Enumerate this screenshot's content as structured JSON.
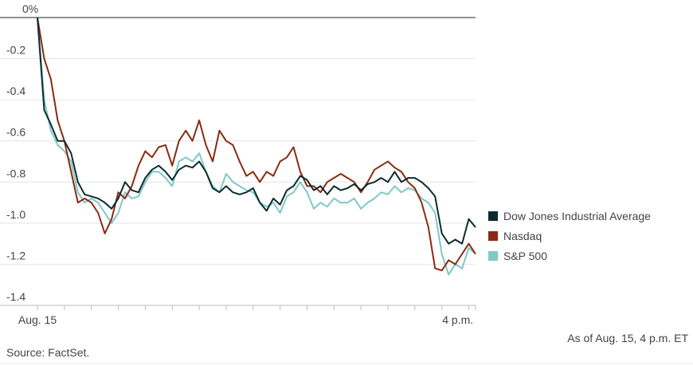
{
  "chart_data": {
    "type": "line",
    "categories": [
      "Aug. 15",
      null,
      null,
      null,
      null,
      null,
      null,
      null,
      null,
      null,
      null,
      null,
      null,
      null,
      null,
      null,
      null,
      null,
      null,
      null,
      null,
      null,
      null,
      null,
      null,
      null,
      null,
      null,
      null,
      null,
      null,
      null,
      null,
      null,
      null,
      null,
      null,
      null,
      null,
      null,
      null,
      null,
      null,
      null,
      null,
      null,
      null,
      null,
      null,
      null,
      null,
      null,
      null,
      null,
      null,
      null,
      null,
      null,
      null,
      null,
      "4 p.m.",
      null,
      null,
      null,
      null,
      null
    ],
    "series": [
      {
        "name": "Dow Jones Industrial Average",
        "color": "#0d2b2e",
        "values": [
          0,
          -0.45,
          -0.52,
          -0.6,
          -0.6,
          -0.66,
          -0.8,
          -0.86,
          -0.87,
          -0.88,
          -0.9,
          -0.93,
          -0.88,
          -0.8,
          -0.84,
          -0.85,
          -0.78,
          -0.74,
          -0.72,
          -0.75,
          -0.79,
          -0.74,
          -0.72,
          -0.73,
          -0.7,
          -0.75,
          -0.83,
          -0.85,
          -0.82,
          -0.85,
          -0.86,
          -0.85,
          -0.83,
          -0.9,
          -0.94,
          -0.88,
          -0.91,
          -0.84,
          -0.82,
          -0.77,
          -0.79,
          -0.84,
          -0.82,
          -0.86,
          -0.82,
          -0.84,
          -0.83,
          -0.81,
          -0.84,
          -0.81,
          -0.8,
          -0.78,
          -0.8,
          -0.75,
          -0.8,
          -0.78,
          -0.78,
          -0.8,
          -0.83,
          -0.87,
          -1.05,
          -1.1,
          -1.08,
          -1.1,
          -0.98,
          -1.02
        ]
      },
      {
        "name": "Nasdaq",
        "color": "#8b2a12",
        "values": [
          0,
          -0.2,
          -0.3,
          -0.5,
          -0.6,
          -0.75,
          -0.9,
          -0.88,
          -0.9,
          -0.95,
          -1.05,
          -0.98,
          -0.85,
          -0.88,
          -0.82,
          -0.72,
          -0.65,
          -0.68,
          -0.63,
          -0.62,
          -0.72,
          -0.6,
          -0.55,
          -0.6,
          -0.5,
          -0.62,
          -0.7,
          -0.55,
          -0.6,
          -0.62,
          -0.7,
          -0.77,
          -0.75,
          -0.8,
          -0.75,
          -0.77,
          -0.7,
          -0.68,
          -0.63,
          -0.75,
          -0.82,
          -0.82,
          -0.85,
          -0.8,
          -0.78,
          -0.76,
          -0.78,
          -0.8,
          -0.85,
          -0.8,
          -0.74,
          -0.72,
          -0.7,
          -0.73,
          -0.75,
          -0.8,
          -0.83,
          -0.9,
          -1.02,
          -1.22,
          -1.23,
          -1.18,
          -1.2,
          -1.15,
          -1.1,
          -1.15
        ]
      },
      {
        "name": "S&P 500",
        "color": "#7ec8c9",
        "values": [
          0,
          -0.4,
          -0.55,
          -0.62,
          -0.65,
          -0.7,
          -0.85,
          -0.9,
          -0.88,
          -0.9,
          -0.95,
          -1.0,
          -0.95,
          -0.85,
          -0.88,
          -0.87,
          -0.8,
          -0.75,
          -0.75,
          -0.78,
          -0.82,
          -0.7,
          -0.68,
          -0.7,
          -0.66,
          -0.75,
          -0.82,
          -0.85,
          -0.76,
          -0.8,
          -0.82,
          -0.84,
          -0.85,
          -0.9,
          -0.92,
          -0.9,
          -0.95,
          -0.87,
          -0.85,
          -0.8,
          -0.85,
          -0.93,
          -0.9,
          -0.92,
          -0.88,
          -0.9,
          -0.9,
          -0.88,
          -0.93,
          -0.9,
          -0.88,
          -0.85,
          -0.86,
          -0.82,
          -0.85,
          -0.83,
          -0.84,
          -0.88,
          -0.9,
          -0.95,
          -1.15,
          -1.25,
          -1.2,
          -1.22,
          -1.12,
          -1.15
        ]
      }
    ],
    "ylim": [
      -1.4,
      0
    ],
    "yticks": [
      {
        "value": 0,
        "label": "0%"
      },
      -0.2,
      -0.4,
      -0.6,
      -0.8,
      {
        "value": -1,
        "label": "-1.0"
      },
      -1.2,
      -1.4
    ],
    "grid": true,
    "legend": "right",
    "note": "As of Aug. 15, 4 p.m. ET",
    "source": "Source: FactSet."
  }
}
